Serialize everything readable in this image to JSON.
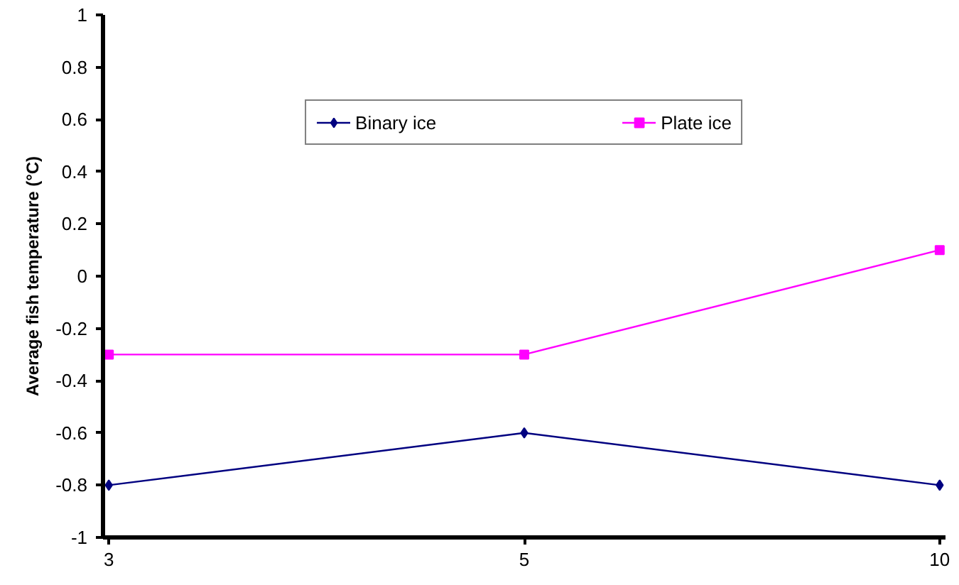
{
  "chart_data": {
    "type": "line",
    "ylabel": "Average fish temperature (°C)",
    "categories": [
      "3",
      "5",
      "10"
    ],
    "series": [
      {
        "name": "Binary ice",
        "color": "#000080",
        "marker": "diamond",
        "values": [
          -0.8,
          -0.6,
          -0.8
        ]
      },
      {
        "name": "Plate ice",
        "color": "#ff00ff",
        "marker": "square",
        "values": [
          -0.3,
          -0.3,
          0.1
        ]
      }
    ],
    "ylim": [
      -1,
      1
    ],
    "yticks": [
      -1,
      -0.8,
      -0.6,
      -0.4,
      -0.2,
      0,
      0.2,
      0.4,
      0.6,
      0.8,
      1
    ],
    "legend": "top",
    "line_style": "solid"
  }
}
